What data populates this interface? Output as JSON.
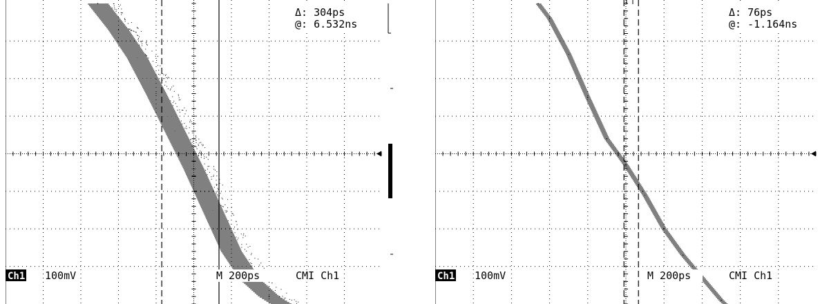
{
  "screens": [
    {
      "delta": "Δ: 304ps",
      "at": "@: 6.532ns",
      "channel": "Ch1",
      "volts_per_div": "100mV",
      "timebase": "M  200ps",
      "trigger": "CMI  Ch1"
    },
    {
      "delta": "Δ: 76ps",
      "at": "@: -1.164ns",
      "channel": "Ch1",
      "volts_per_div": "100mV",
      "timebase": "M  200ps",
      "trigger": "CMI  Ch1"
    }
  ],
  "chart_data": [
    {
      "type": "scatter",
      "title": "",
      "xlabel": "",
      "ylabel": "",
      "x_divisions": 10,
      "y_divisions": 8,
      "x_scale": "200ps/div",
      "y_scale": "100mV/div",
      "x_units": "ps (relative to screen center)",
      "y_units": "mV (relative to center)",
      "series": [
        {
          "values": [
            {
              "x": -510,
              "y": 400
            },
            {
              "x": -400,
              "y": 330
            },
            {
              "x": -300,
              "y": 255
            },
            {
              "x": -200,
              "y": 160
            },
            {
              "x": -100,
              "y": 60
            },
            {
              "x": 0,
              "y": -40
            },
            {
              "x": 100,
              "y": -150
            },
            {
              "x": 200,
              "y": -260
            },
            {
              "x": 300,
              "y": -335
            },
            {
              "x": 400,
              "y": -380
            },
            {
              "x": 480,
              "y": -405
            }
          ],
          "band_width_ps": 110
        }
      ],
      "cursors_ps": [
        -170,
        134
      ],
      "grid": true,
      "ground_marker": "right"
    },
    {
      "type": "scatter",
      "title": "",
      "xlabel": "",
      "ylabel": "",
      "x_divisions": 10,
      "y_divisions": 8,
      "x_scale": "200ps/div",
      "y_scale": "100mV/div",
      "x_units": "ps (relative to screen center)",
      "y_units": "mV (relative to center)",
      "series": [
        {
          "values": [
            {
              "x": -460,
              "y": 400
            },
            {
              "x": -400,
              "y": 360
            },
            {
              "x": -300,
              "y": 265
            },
            {
              "x": -200,
              "y": 150
            },
            {
              "x": -100,
              "y": 40
            },
            {
              "x": 0,
              "y": -30
            },
            {
              "x": 100,
              "y": -110
            },
            {
              "x": 200,
              "y": -200
            },
            {
              "x": 300,
              "y": -270
            },
            {
              "x": 400,
              "y": -330
            },
            {
              "x": 500,
              "y": -390
            },
            {
              "x": 540,
              "y": -410
            }
          ],
          "band_width_ps": 28
        }
      ],
      "cursors_ps": [
        -10,
        66
      ],
      "grid": true,
      "ground_marker": "right"
    }
  ]
}
